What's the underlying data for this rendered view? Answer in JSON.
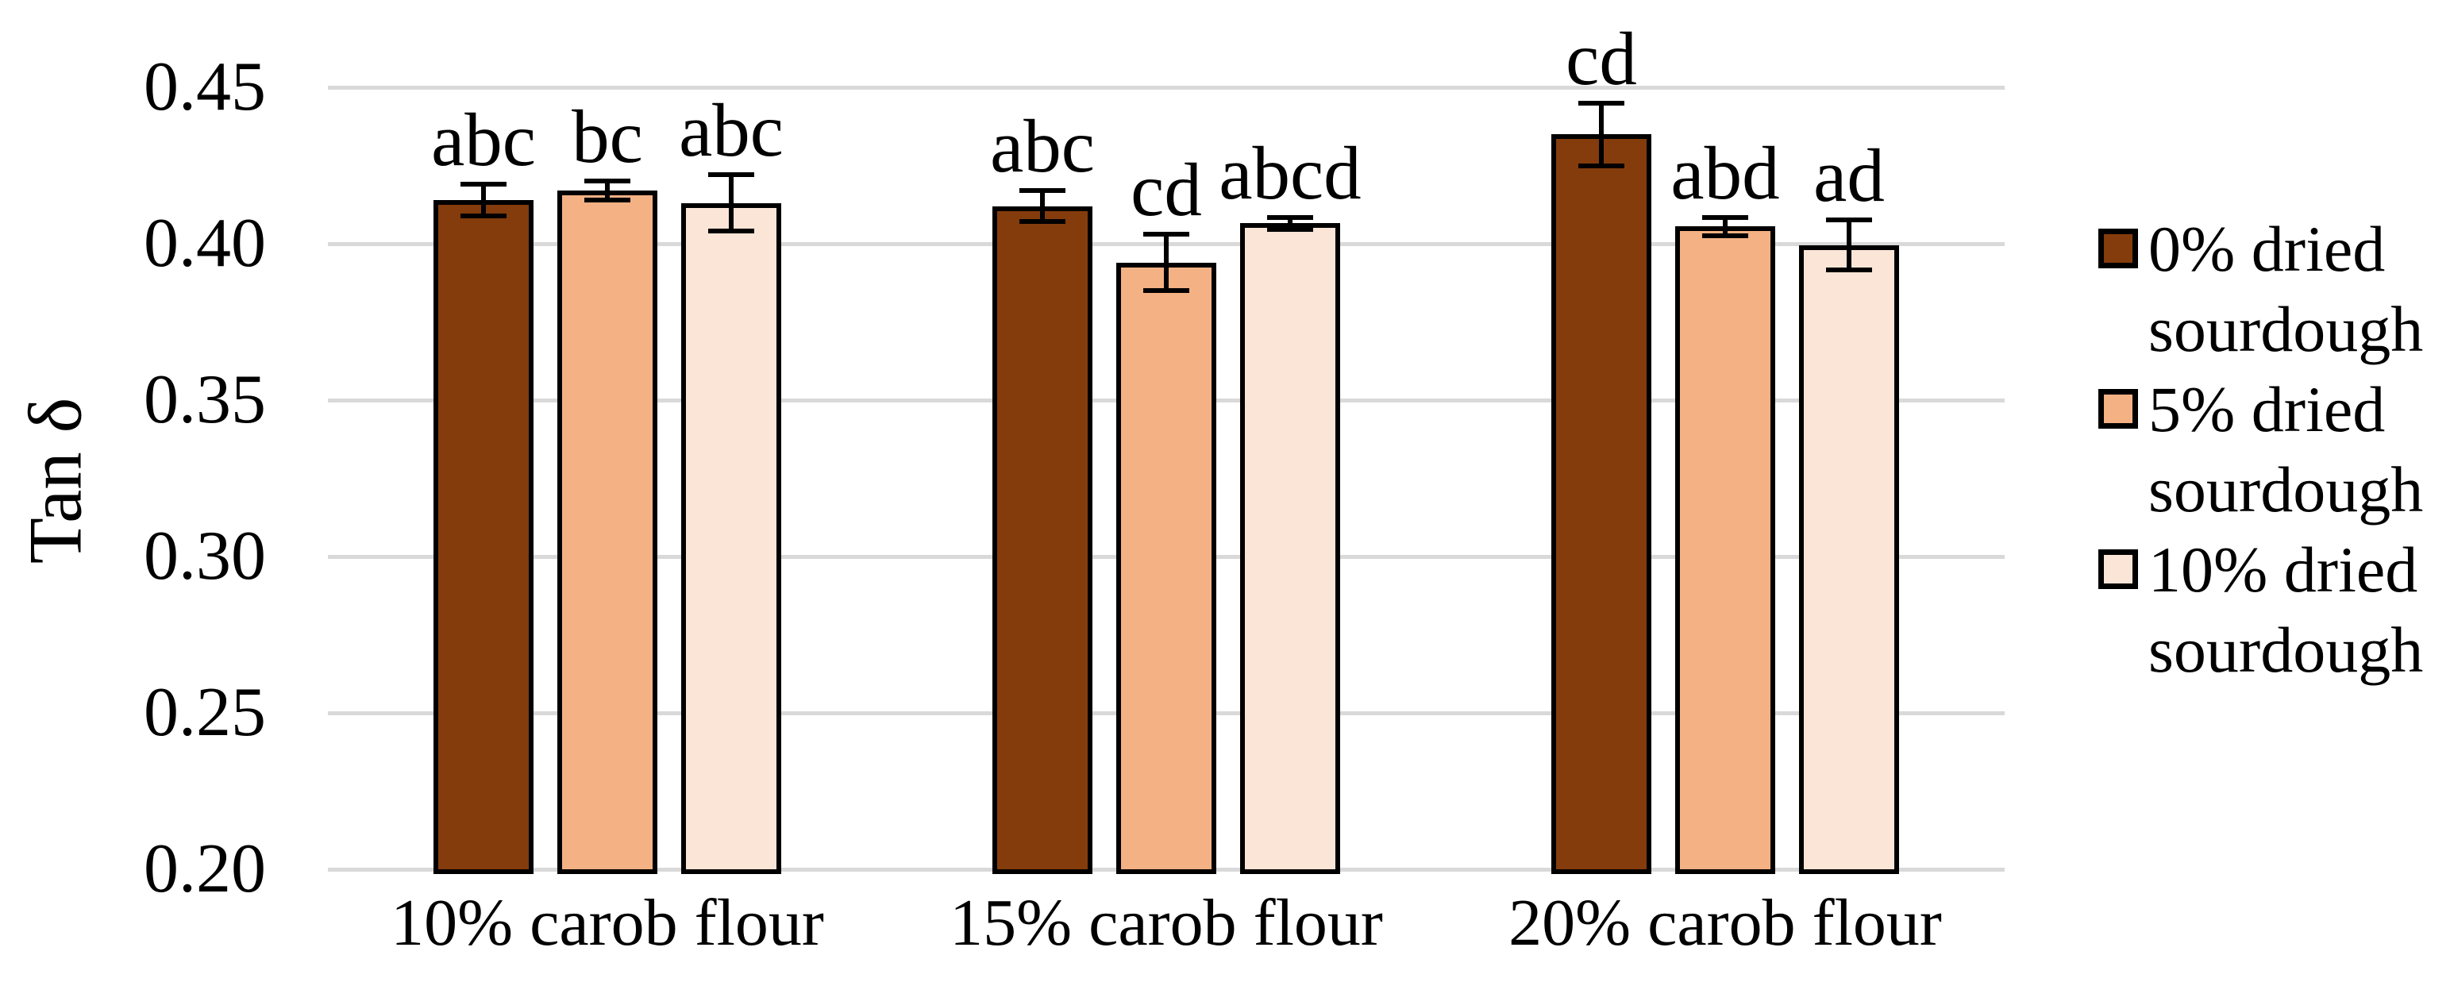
{
  "chart_data": {
    "type": "bar",
    "title": "",
    "ylabel": "Tan δ",
    "xlabel": "",
    "categories": [
      "10% carob flour",
      "15% carob flour",
      "20% carob flour"
    ],
    "series": [
      {
        "name": "0% dried sourdough",
        "legend_lines": [
          "0% dried",
          "sourdough"
        ],
        "color": "#843C0C",
        "values": [
          0.414,
          0.412,
          0.435
        ],
        "errors": [
          0.005,
          0.005,
          0.01
        ],
        "letters": [
          "abc",
          "abc",
          "cd"
        ]
      },
      {
        "name": "5% dried sourdough",
        "legend_lines": [
          "5% dried",
          "sourdough"
        ],
        "color": "#F4B183",
        "values": [
          0.417,
          0.394,
          0.4055
        ],
        "errors": [
          0.003,
          0.009,
          0.003
        ],
        "letters": [
          "bc",
          "cd",
          "abd"
        ]
      },
      {
        "name": "10% dried sourdough",
        "legend_lines": [
          "10% dried",
          "sourdough"
        ],
        "color": "#FBE5D6",
        "values": [
          0.413,
          0.4065,
          0.3995
        ],
        "errors": [
          0.009,
          0.002,
          0.008
        ],
        "letters": [
          "abc",
          "abcd",
          "ad"
        ]
      }
    ],
    "ylim": [
      0.2,
      0.45
    ],
    "ytick_step": 0.05,
    "yticks": [
      0.45,
      0.4,
      0.35,
      0.3,
      0.25,
      0.2
    ],
    "ytick_labels": [
      "0.45",
      "0.40",
      "0.35",
      "0.30",
      "0.25",
      "0.20"
    ],
    "grid": true,
    "legend_position": "right",
    "gridline_color": "#D9D9D9",
    "bar_border_color": "#000000",
    "error_bar_color": "#000000",
    "background": "#FFFFFF"
  }
}
